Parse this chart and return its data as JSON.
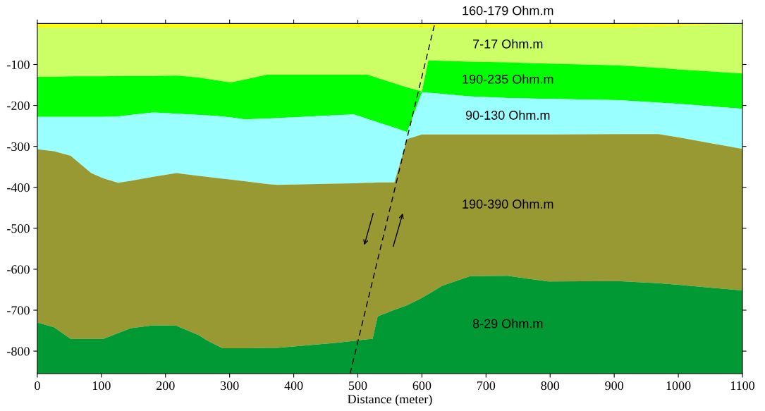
{
  "chart_data": {
    "type": "area",
    "stacked": true,
    "xlabel": "Distance (meter)",
    "x": [
      0,
      26,
      52,
      84,
      103,
      126,
      146,
      181,
      217,
      252,
      264,
      289,
      302,
      323,
      358,
      374,
      464,
      494,
      515,
      523,
      531,
      557,
      577,
      600,
      610,
      632,
      675,
      734,
      797,
      906,
      969,
      1000,
      1100
    ],
    "xlim": [
      0,
      1100
    ],
    "xticks": [
      0,
      100,
      200,
      300,
      400,
      500,
      600,
      700,
      800,
      900,
      1000,
      1100
    ],
    "ylim": [
      -855,
      0
    ],
    "yticks": [
      -100,
      -200,
      -300,
      -400,
      -500,
      -600,
      -700,
      -800
    ],
    "grid": false,
    "legend": false,
    "series": [
      {
        "name": "160-179 Ohm.m",
        "color": "#ffff00",
        "values": [
          -10,
          -10,
          -10,
          -10,
          -10,
          -10,
          -10,
          -10,
          -10,
          -10,
          -10,
          -10,
          -10,
          -10,
          -10,
          -10,
          -10,
          -10,
          -10,
          -10,
          -10,
          -10,
          -10,
          -10,
          -10,
          -10,
          -10,
          -10,
          -10,
          -10,
          -8,
          -6,
          -1
        ]
      },
      {
        "name": "7-17 Ohm.m",
        "color": "#ccff66",
        "values": [
          -120,
          -120,
          -119,
          -119,
          -119,
          -118,
          -118,
          -118,
          -117,
          -122,
          -125,
          -131,
          -134,
          -127,
          -115,
          -115,
          -115,
          -115,
          -115,
          -119,
          -123,
          -136,
          -146,
          -156,
          -80,
          -81,
          -83,
          -85,
          -88,
          -92,
          -100,
          -106,
          -121
        ]
      },
      {
        "name": "190-235 Ohm.m",
        "color": "#00ff00",
        "values": [
          -98,
          -98,
          -99,
          -99,
          -99,
          -99,
          -95,
          -89,
          -93,
          -91,
          -89,
          -86,
          -85,
          -97,
          -107,
          -106,
          -99,
          -97,
          -108,
          -108,
          -108,
          -108,
          -109,
          -2,
          -79,
          -81,
          -85,
          -87,
          -86,
          -85,
          -85,
          -84,
          -86
        ]
      },
      {
        "name": "90-130 Ohm.m",
        "color": "#99ffff",
        "values": [
          -79,
          -84,
          -95,
          -137,
          -150,
          -162,
          -161,
          -157,
          -145,
          -149,
          -150,
          -152,
          -152,
          -151,
          -160,
          -163,
          -167,
          -168,
          -156,
          -152,
          -147,
          -134,
          -17,
          -103,
          -102,
          -99,
          -93,
          -89,
          -87,
          -83,
          -77,
          -82,
          -98
        ]
      },
      {
        "name": "190-390 Ohm.m",
        "color": "#999933",
        "values": [
          -423,
          -430,
          -447,
          -405,
          -392,
          -367,
          -360,
          -363,
          -373,
          -389,
          -399,
          -414,
          -412,
          -408,
          -400,
          -398,
          -389,
          -385,
          -382,
          -381,
          -327,
          -311,
          -406,
          -399,
          -390,
          -369,
          -346,
          -345,
          -359,
          -359,
          -364,
          -360,
          -346
        ]
      },
      {
        "name": "8-29 Ohm.m",
        "color": "#009933",
        "values": [
          -125,
          -113,
          -85,
          -85,
          -85,
          -99,
          -111,
          -118,
          -117,
          -94,
          -82,
          -62,
          -62,
          -62,
          -63,
          -63,
          -75,
          -80,
          -84,
          -85,
          -140,
          -156,
          -167,
          -185,
          -194,
          -215,
          -238,
          -239,
          -225,
          -226,
          -221,
          -217,
          -203
        ]
      },
      {
        "type": "line",
        "x": [
          488,
          620
        ],
        "values": [
          -855,
          0
        ],
        "color": "#000000",
        "line_style": "dashed"
      }
    ]
  }
}
